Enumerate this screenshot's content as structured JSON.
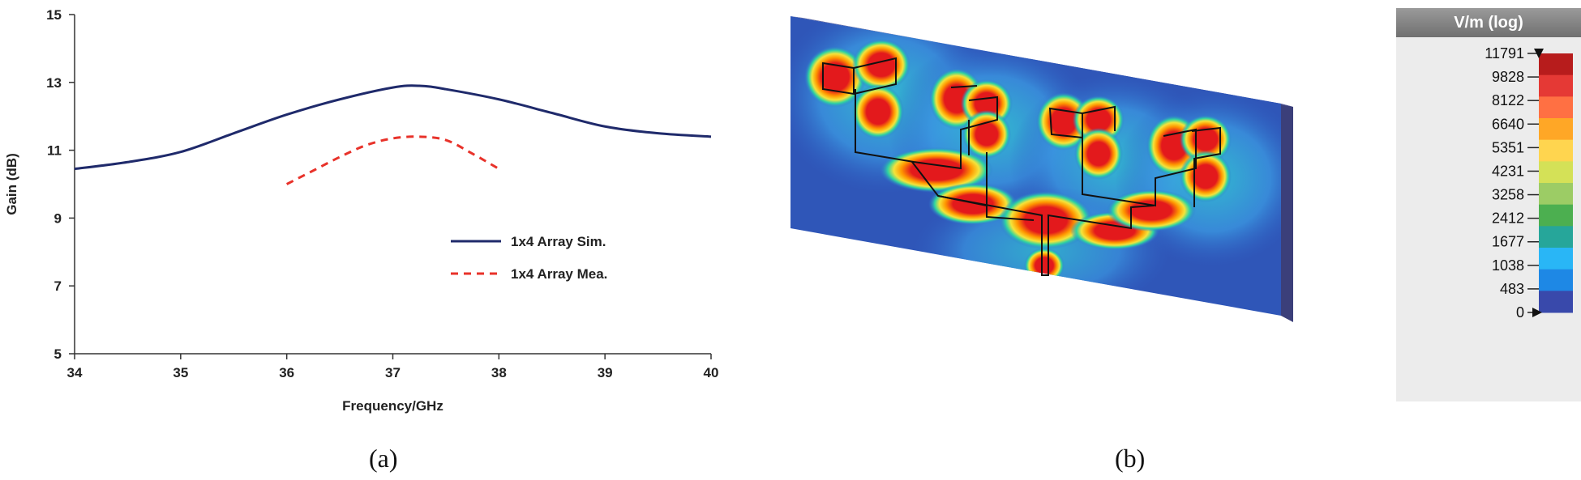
{
  "chart_data": [
    {
      "type": "line",
      "title": "",
      "xlabel": "Frequency/GHz",
      "ylabel": "Gain (dB)",
      "xlim": [
        34,
        40
      ],
      "ylim": [
        5,
        15
      ],
      "xticks": [
        "34",
        "35",
        "36",
        "37",
        "38",
        "39",
        "40"
      ],
      "yticks": [
        "5",
        "7",
        "9",
        "11",
        "13",
        "15"
      ],
      "grid": false,
      "legend_position": "bottom-right",
      "series": [
        {
          "name": "1x4 Array Sim.",
          "color": "#1f2a6b",
          "style": "solid",
          "x": [
            34,
            34.5,
            35,
            35.5,
            36,
            36.5,
            37,
            37.25,
            37.5,
            38,
            38.5,
            39,
            39.5,
            40
          ],
          "y": [
            10.45,
            10.65,
            10.95,
            11.5,
            12.05,
            12.5,
            12.85,
            12.9,
            12.8,
            12.5,
            12.1,
            11.7,
            11.5,
            11.4
          ]
        },
        {
          "name": "1x4 Array Mea.",
          "color": "#e8322a",
          "style": "dashed",
          "x": [
            36,
            36.25,
            36.5,
            36.75,
            37,
            37.25,
            37.5,
            37.75,
            38
          ],
          "y": [
            10.0,
            10.4,
            10.8,
            11.15,
            11.35,
            11.4,
            11.3,
            10.9,
            10.45
          ]
        }
      ]
    }
  ],
  "captions": {
    "a": "(a)",
    "b": "(b)"
  },
  "colorbar": {
    "unit": "V/m (log)",
    "ticks": [
      "11791",
      "9828",
      "8122",
      "6640",
      "5351",
      "4231",
      "3258",
      "2412",
      "1677",
      "1038",
      "483",
      "0"
    ],
    "colors": [
      "#b71c1c",
      "#e53935",
      "#ff7043",
      "#ffa726",
      "#ffd54f",
      "#d4e157",
      "#9ccc65",
      "#4caf50",
      "#26a69a",
      "#29b6f6",
      "#1e88e5",
      "#3949ab"
    ]
  }
}
